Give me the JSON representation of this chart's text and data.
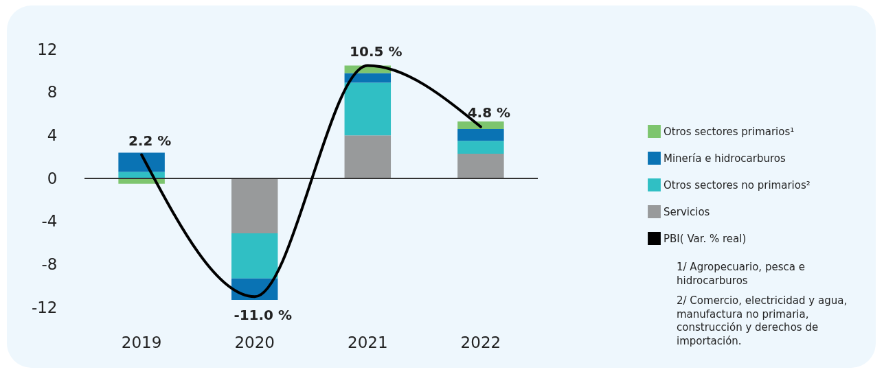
{
  "chart_data": {
    "type": "bar",
    "stacked": true,
    "categories": [
      "2019",
      "2020",
      "2021",
      "2022"
    ],
    "series": [
      {
        "name": "Servicios",
        "color": "#989a9b",
        "values": [
          0,
          -5.1,
          4.0,
          2.3
        ]
      },
      {
        "name": "Otros sectores no primarios²",
        "color": "#30bfc4",
        "values": [
          0.6,
          -4.2,
          4.9,
          1.2
        ]
      },
      {
        "name": "Minería e hidrocarburos",
        "color": "#0a73b4",
        "values": [
          1.8,
          -2.0,
          0.9,
          1.1
        ]
      },
      {
        "name": "Otros sectores primarios¹",
        "color": "#7dc56e",
        "values": [
          -0.5,
          0,
          0.7,
          0.7
        ]
      },
      {
        "name": "PBI( Var. % real)",
        "type": "line",
        "color": "#000000",
        "values": [
          2.2,
          -11.0,
          10.5,
          4.8
        ],
        "value_labels": [
          "2.2 %",
          "-11.0 %",
          "10.5 %",
          "4.8 %"
        ]
      }
    ],
    "ylim": [
      -12,
      12
    ],
    "yticks": [
      -12,
      -8,
      -4,
      0,
      4,
      8,
      12
    ],
    "grid": false,
    "legend": "right",
    "ref_lines": [
      {
        "axis": "y",
        "value": 0,
        "color": "#333333"
      }
    ],
    "annotations": [
      "1/ Agropecuario, pesca e hidrocarburos",
      "2/ Comercio, electricidad y agua, manufactura no primaria, construcción y derechos de importación."
    ]
  }
}
